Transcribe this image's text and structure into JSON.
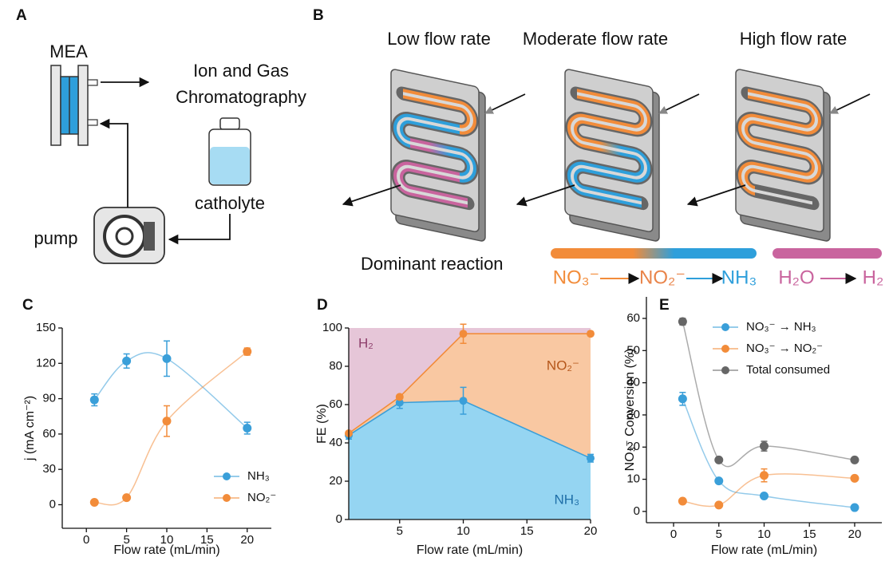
{
  "figure": {
    "A": {
      "panel": "A",
      "mea": "MEA",
      "detector": [
        "Ion and Gas",
        "Chromatography"
      ],
      "catholyte": "catholyte",
      "pump": "pump"
    },
    "B": {
      "panel": "B",
      "flow_rates": [
        "Low flow rate",
        "Moderate flow rate",
        "High flow rate"
      ],
      "dominant_reaction": "Dominant reaction",
      "nitrate_path": [
        "NO₃⁻",
        "NO₂⁻",
        "NH₃"
      ],
      "water_path": [
        "H₂O",
        "H₂"
      ]
    }
  },
  "chart_data": [
    {
      "panel": "C",
      "type": "line",
      "smooth": true,
      "x": [
        1,
        5,
        10,
        20
      ],
      "xlabel": "Flow rate (mL/min)",
      "ylabel": "j (mA cm⁻²)",
      "xlim": [
        -3,
        23
      ],
      "xticks": [
        0,
        5,
        10,
        15,
        20
      ],
      "ylim": [
        -20,
        150
      ],
      "yticks": [
        0,
        30,
        60,
        90,
        120,
        150
      ],
      "legend": "lower right",
      "series": [
        {
          "name": "NH₃",
          "color": "#3a9fd9",
          "values": [
            89,
            122,
            124,
            65
          ],
          "errors": [
            5,
            6,
            15,
            5
          ]
        },
        {
          "name": "NO₂⁻",
          "color": "#f28c3a",
          "values": [
            2,
            6,
            71,
            130
          ],
          "errors": [
            1,
            1,
            13,
            3
          ]
        }
      ]
    },
    {
      "panel": "D",
      "type": "area",
      "stacked": true,
      "x": [
        1,
        5,
        10,
        20
      ],
      "xlabel": "Flow rate (mL/min)",
      "ylabel": "FE (%)",
      "xlim": [
        1,
        20
      ],
      "xticks": [
        5,
        10,
        15,
        20
      ],
      "ylim": [
        0,
        100
      ],
      "yticks": [
        0,
        20,
        40,
        60,
        80,
        100
      ],
      "series": [
        {
          "name": "NH₃",
          "color": "#3a9fd9",
          "fill": "#95d5f2",
          "label_color": "#1f6fa8",
          "values": [
            44,
            61,
            62,
            32
          ],
          "errors": [
            2,
            3,
            7,
            2
          ]
        },
        {
          "name": "NO₂⁻",
          "color": "#f28c3a",
          "fill": "#f9c8a2",
          "label_color": "#b5561a",
          "values": [
            1,
            3,
            35,
            65
          ],
          "errors": [
            1,
            1,
            5,
            1
          ]
        },
        {
          "name": "H₂",
          "fill": "#e6c6d8",
          "label_color": "#8e3f6c",
          "values": [
            55,
            36,
            3,
            3
          ]
        }
      ]
    },
    {
      "panel": "E",
      "type": "line",
      "smooth": true,
      "x": [
        1,
        5,
        10,
        20
      ],
      "xlabel": "Flow rate (mL/min)",
      "ylabel": "NO₃⁻ Conversion (%)",
      "xlim": [
        -3,
        23
      ],
      "xticks": [
        0,
        5,
        10,
        15,
        20
      ],
      "ylim": [
        -3.5,
        66.7
      ],
      "yticks": [
        0,
        10,
        20,
        30,
        40,
        50,
        60
      ],
      "legend": "upper right",
      "series": [
        {
          "name": "NO₃⁻ → NH₃",
          "color": "#3a9fd9",
          "values": [
            35,
            9.5,
            4.8,
            1.2
          ],
          "errors": [
            2,
            0.5,
            0.5,
            0.3
          ]
        },
        {
          "name": "NO₃⁻ → NO₂⁻",
          "color": "#f28c3a",
          "values": [
            3.2,
            2,
            11.2,
            10.3
          ],
          "errors": [
            0.3,
            0.3,
            2,
            0.5
          ]
        },
        {
          "name": "Total consumed",
          "color": "#666666",
          "values": [
            59,
            16,
            20.3,
            16
          ],
          "errors": [
            1,
            0.5,
            1.5,
            0.5
          ]
        }
      ]
    }
  ]
}
